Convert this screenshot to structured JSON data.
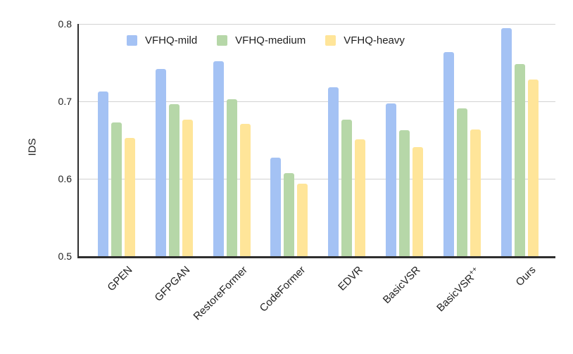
{
  "chart_data": {
    "type": "bar",
    "title": "",
    "ylabel": "IDS",
    "xlabel": "",
    "categories": [
      "GPEN",
      "GFPGAN",
      "RestoreFormer",
      "CodeFormer",
      "EDVR",
      "BasicVSR",
      "BasicVSR++",
      "Ours"
    ],
    "series": [
      {
        "name": "VFHQ-mild",
        "color": "#a4c2f4",
        "values": [
          0.713,
          0.742,
          0.752,
          0.627,
          0.718,
          0.697,
          0.764,
          0.795
        ]
      },
      {
        "name": "VFHQ-medium",
        "color": "#b6d7a8",
        "values": [
          0.673,
          0.696,
          0.703,
          0.607,
          0.676,
          0.663,
          0.691,
          0.748
        ]
      },
      {
        "name": "VFHQ-heavy",
        "color": "#ffe599",
        "values": [
          0.653,
          0.676,
          0.671,
          0.594,
          0.651,
          0.641,
          0.664,
          0.728
        ]
      }
    ],
    "ylim": [
      0.5,
      0.8
    ],
    "yticks": [
      0.5,
      0.6,
      0.7,
      0.8
    ],
    "grid": true,
    "legend_position": "top-inside-horizontal"
  },
  "colors": {
    "background": "#ffffff",
    "grid": "#d2d2d2",
    "axis": "#2e2e2e",
    "text": "#1f1f1f"
  }
}
